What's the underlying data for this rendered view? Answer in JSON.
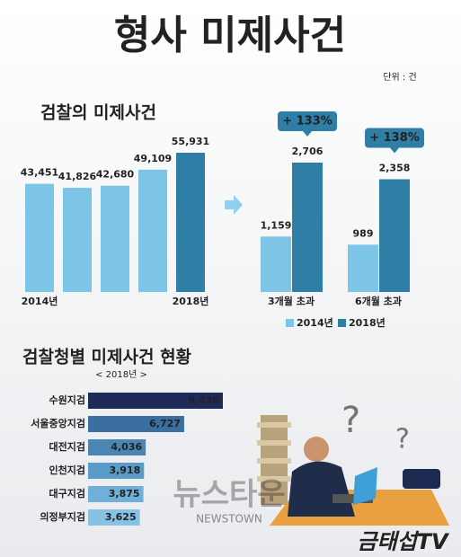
{
  "header": {
    "title": "형사 미제사건",
    "unit": "단위 : 건"
  },
  "chart_data": [
    {
      "type": "bar",
      "title": "검찰의 미제사건",
      "categories": [
        "2014년",
        null,
        null,
        null,
        "2018년"
      ],
      "values": [
        43451,
        41826,
        42680,
        49109,
        55931
      ],
      "value_labels": [
        "43,451",
        "41,826",
        "42,680",
        "49,109",
        "55,931"
      ],
      "colors": [
        "#7cc5e6",
        "#7cc5e6",
        "#7cc5e6",
        "#7cc5e6",
        "#2e7ea6"
      ]
    },
    {
      "type": "grouped_bar",
      "categories": [
        "3개월 초과",
        "6개월 초과"
      ],
      "series": [
        {
          "name": "2014년",
          "color": "#7cc5e6",
          "values": [
            1159,
            989
          ],
          "value_labels": [
            "1,159",
            "989"
          ]
        },
        {
          "name": "2018년",
          "color": "#2e7ea6",
          "values": [
            2706,
            2358
          ],
          "value_labels": [
            "2,706",
            "2,358"
          ]
        }
      ],
      "annotations": [
        "+ 133%",
        "+ 138%"
      ]
    },
    {
      "type": "horizontal_bar",
      "title": "검찰청별 미제사건 현황",
      "subtitle": "< 2018년 >",
      "categories": [
        "수원지검",
        "서울중앙지검",
        "대전지검",
        "인천지검",
        "대구지검",
        "의정부지검"
      ],
      "values": [
        9438,
        6727,
        4036,
        3918,
        3875,
        3625
      ],
      "value_labels": [
        "9,438",
        "6,727",
        "4,036",
        "3,918",
        "3,875",
        "3,625"
      ],
      "colors": [
        "#1e2a5a",
        "#3b6fa0",
        "#4a86b3",
        "#5a9cc8",
        "#6fb0d8",
        "#86c2e3"
      ]
    }
  ],
  "watermark": {
    "main": "뉴스타운",
    "sub": "NEWSTOWN"
  },
  "logo": "금태섭TV"
}
